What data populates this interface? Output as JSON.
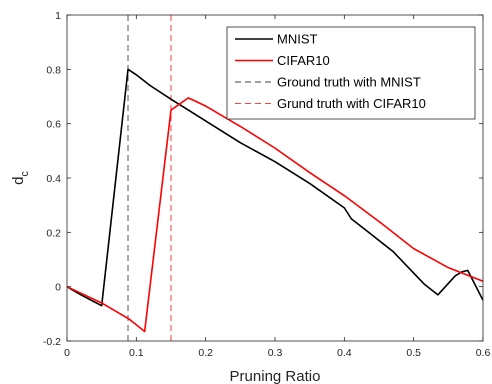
{
  "chart_data": {
    "type": "line",
    "title": "",
    "xlabel": "Pruning Ratio",
    "ylabel_main": "d",
    "ylabel_sub": "c",
    "xlim": [
      0,
      0.6
    ],
    "ylim": [
      -0.2,
      1
    ],
    "xticks": [
      "0",
      "0.1",
      "0.2",
      "0.3",
      "0.4",
      "0.5",
      "0.6"
    ],
    "yticks": [
      "-0.2",
      "0",
      "0.2",
      "0.4",
      "0.6",
      "0.8",
      "1"
    ],
    "grid": false,
    "legend_position": "top-right",
    "series": [
      {
        "name": "MNIST",
        "color": "#000000",
        "style": "solid",
        "x": [
          0,
          0.02,
          0.035,
          0.05,
          0.088,
          0.1,
          0.12,
          0.15,
          0.2,
          0.25,
          0.3,
          0.35,
          0.4,
          0.41,
          0.44,
          0.47,
          0.5,
          0.515,
          0.535,
          0.56,
          0.57,
          0.578,
          0.6
        ],
        "y": [
          0,
          -0.03,
          -0.05,
          -0.07,
          0.8,
          0.78,
          0.74,
          0.69,
          0.61,
          0.53,
          0.46,
          0.38,
          0.29,
          0.25,
          0.19,
          0.13,
          0.05,
          0.01,
          -0.03,
          0.04,
          0.055,
          0.06,
          -0.05
        ]
      },
      {
        "name": "CIFAR10",
        "color": "#ff0000",
        "style": "solid",
        "x": [
          0,
          0.025,
          0.05,
          0.09,
          0.112,
          0.15,
          0.175,
          0.2,
          0.25,
          0.3,
          0.35,
          0.4,
          0.45,
          0.5,
          0.55,
          0.6
        ],
        "y": [
          0,
          -0.03,
          -0.06,
          -0.12,
          -0.165,
          0.65,
          0.695,
          0.665,
          0.59,
          0.51,
          0.42,
          0.335,
          0.24,
          0.14,
          0.07,
          0.02
        ]
      },
      {
        "name": "Ground truth with MNIST",
        "color": "#000000",
        "style": "dashed",
        "x": [
          0.088,
          0.088
        ],
        "y": [
          -0.2,
          1
        ]
      },
      {
        "name": "Grund truth with CIFAR10",
        "color": "#ff0000",
        "style": "dashed",
        "x": [
          0.15,
          0.15
        ],
        "y": [
          -0.2,
          1
        ]
      }
    ]
  }
}
